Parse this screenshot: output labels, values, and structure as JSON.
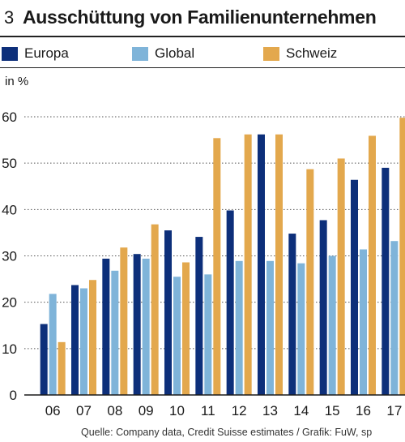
{
  "figure": {
    "number": "3",
    "title": "Ausschüttung von Familienunternehmen",
    "source": "Quelle: Company data, Credit Suisse estimates / Grafik: FuW, sp"
  },
  "legend": [
    {
      "name": "Europa",
      "color": "#0d2f7a"
    },
    {
      "name": "Global",
      "color": "#7fb4d9"
    },
    {
      "name": "Schweiz",
      "color": "#e3a84d"
    }
  ],
  "chart_data": {
    "type": "bar",
    "ylabel": "in %",
    "ylim": [
      0,
      60
    ],
    "yticks": [
      0,
      10,
      20,
      30,
      40,
      50,
      60
    ],
    "grid": "horizontal dotted",
    "legend_position": "top",
    "categories": [
      "06",
      "07",
      "08",
      "09",
      "10",
      "11",
      "12",
      "13",
      "14",
      "15",
      "16",
      "17"
    ],
    "series": [
      {
        "name": "Europa",
        "color": "#0d2f7a",
        "values": [
          15.3,
          23.7,
          29.4,
          30.4,
          35.5,
          34.1,
          39.8,
          56.2,
          34.8,
          37.7,
          46.4,
          49.0
        ]
      },
      {
        "name": "Global",
        "color": "#7fb4d9",
        "values": [
          21.8,
          23.0,
          26.8,
          29.4,
          25.5,
          26.0,
          28.9,
          28.9,
          28.4,
          30.0,
          31.4,
          33.2
        ]
      },
      {
        "name": "Schweiz",
        "color": "#e3a84d",
        "values": [
          11.4,
          24.8,
          31.8,
          36.8,
          28.6,
          55.4,
          56.2,
          56.2,
          48.7,
          51.0,
          55.9,
          59.8
        ]
      }
    ]
  }
}
